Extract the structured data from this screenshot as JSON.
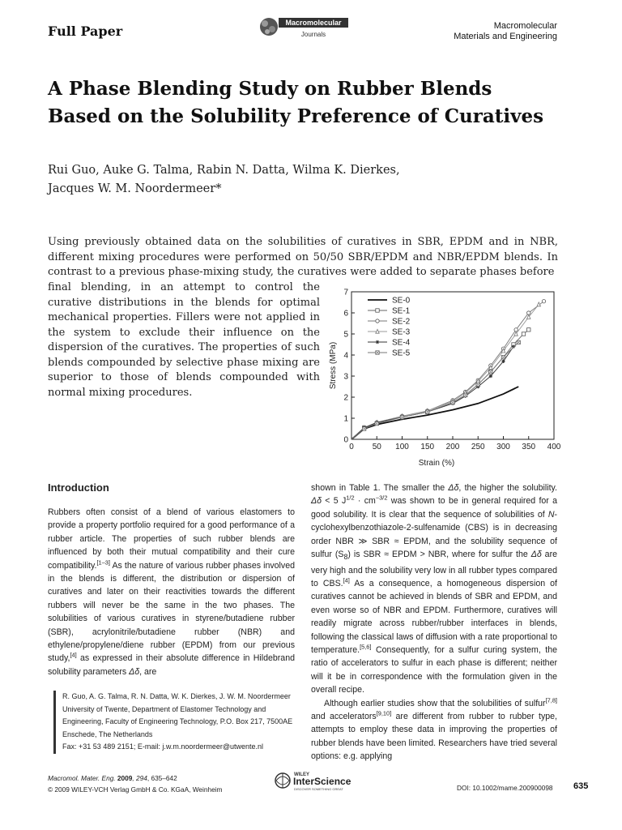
{
  "header": {
    "section_label": "Full Paper",
    "journal_logo_line1": "Macromolecular",
    "journal_logo_line2": "Journals",
    "journal_name_line1": "Macromolecular",
    "journal_name_line2": "Materials and Engineering"
  },
  "title_line1": "A Phase Blending Study on Rubber Blends",
  "title_line2": "Based on the Solubility Preference of Curatives",
  "authors_line1": "Rui Guo, Auke G. Talma, Rabin N. Datta, Wilma K. Dierkes,",
  "authors_line2": "Jacques W. M. Noordermeer*",
  "abstract_part1": "Using previously obtained data on the solubilities of curatives in SBR, EPDM and in NBR, different mixing procedures were performed on 50/50 SBR/EPDM and NBR/EPDM blends. In contrast to a previous phase-mixing study, the curatives were added to separate phases before",
  "abstract_part2": "final blending, in an attempt to control the curative distributions in the blends for optimal mechanical properties. Fillers were not applied in the system to exclude their influence on the dispersion of the curatives. The properties of such blends compounded by selective phase mixing are superior to those of blends compounded with normal mixing procedures.",
  "introduction": {
    "heading": "Introduction",
    "col1_text": "Rubbers often consist of a blend of various elastomers to provide a property portfolio required for a good performance of a rubber article. The properties of such rubber blends are influenced by both their mutual compatibility and their cure compatibility.",
    "col1_ref1": "[1–3]",
    "col1_text2": " As the nature of various rubber phases involved in the blends is different, the distribution or dispersion of curatives and later on their reactivities towards the different rubbers will never be the same in the two phases. The solubilities of various curatives in styrene/butadiene rubber (SBR), acrylonitrile/butadiene rubber (NBR) and ethylene/propylene/diene rubber (EPDM) from our previous study,",
    "col1_ref2": "[4]",
    "col1_text3": " as expressed in their absolute difference in Hildebrand solubility parameters ",
    "col1_delta": "Δδ",
    "col1_text4": ", are",
    "col2_p1a": "shown in Table 1. The smaller the ",
    "col2_p1b": "Δδ",
    "col2_p1c": ", the higher the solubility. ",
    "col2_p1d": "Δδ",
    "col2_p1e": " < 5 J",
    "col2_p1e_sup": "1/2",
    "col2_p1f": " · cm",
    "col2_p1f_sup": "−3/2",
    "col2_p1g": " was shown to be in general required for a good solubility. It is clear that the sequence of solubilities of ",
    "col2_p1h": "N",
    "col2_p1i": "-cyclohexylbenzothiazole-2-sulfenamide (CBS) is in decreasing order NBR ≫ SBR ≈ EPDM, and the solubility sequence of sulfur (S",
    "col2_p1i_sub": "8",
    "col2_p1j": ") is SBR ≈ EPDM > NBR, where for sulfur the ",
    "col2_p1k": "Δδ",
    "col2_p1l": " are very high and the solubility very low in all rubber types compared to CBS.",
    "col2_ref1": "[4]",
    "col2_p1m": " As a consequence, a homogeneous dispersion of curatives cannot be achieved in blends of SBR and EPDM, and even worse so of NBR and EPDM. Furthermore, curatives will readily migrate across rubber/rubber interfaces in blends, following the classical laws of diffusion with a rate proportional to temperature.",
    "col2_ref2": "[5,6]",
    "col2_p1n": " Consequently, for a sulfur curing system, the ratio of accelerators to sulfur in each phase is different; neither will it be in correspondence with the formulation given in the overall recipe.",
    "col2_p2a": "Although earlier studies show that the solubilities of sulfur",
    "col2_ref3": "[7,8]",
    "col2_p2b": " and accelerators",
    "col2_ref4": "[9,10]",
    "col2_p2c": " are different from rubber to rubber type, attempts to employ these data in improving the properties of rubber blends have been limited. Researchers have tried several options: e.g. applying"
  },
  "affiliation": {
    "line1": "R. Guo, A. G. Talma, R. N. Datta, W. K. Dierkes, J. W. M. Noordermeer",
    "line2": "University of Twente, Department of Elastomer Technology and Engineering, Faculty of Engineering Technology, P.O. Box 217, 7500AE Enschede, The Netherlands",
    "line3": "Fax: +31 53 489 2151; E-mail: j.w.m.noordermeer@utwente.nl"
  },
  "footer": {
    "cite_a": "Macromol. Mater. Eng.",
    "cite_b": " 2009",
    "cite_c": ", 294",
    "cite_d": ", 635–642",
    "copyright": "© 2009 WILEY-VCH Verlag GmbH & Co. KGaA, Weinheim",
    "logo_small": "WILEY",
    "logo_main": "InterScience",
    "logo_tag": "DISCOVER SOMETHING GREAT",
    "doi": "DOI: 10.1002/mame.200900098",
    "page": "635"
  },
  "chart_data": {
    "type": "line",
    "xlabel": "Strain (%)",
    "ylabel": "Stress (MPa)",
    "xlim": [
      0,
      400
    ],
    "ylim": [
      0,
      7
    ],
    "xticks": [
      0,
      50,
      100,
      150,
      200,
      250,
      300,
      350,
      400
    ],
    "yticks": [
      0,
      1,
      2,
      3,
      4,
      5,
      6,
      7
    ],
    "legend_position": "top-left",
    "grid": false,
    "series": [
      {
        "name": "SE-0",
        "marker": "none",
        "x": [
          0,
          25,
          50,
          100,
          150,
          200,
          250,
          300,
          330
        ],
        "y": [
          0,
          0.5,
          0.7,
          0.95,
          1.15,
          1.4,
          1.7,
          2.15,
          2.5
        ]
      },
      {
        "name": "SE-1",
        "marker": "square",
        "x": [
          0,
          25,
          50,
          100,
          150,
          200,
          225,
          250,
          275,
          300,
          320,
          340,
          350
        ],
        "y": [
          0,
          0.55,
          0.75,
          1.05,
          1.3,
          1.75,
          2.1,
          2.6,
          3.2,
          3.9,
          4.5,
          5.0,
          5.2
        ]
      },
      {
        "name": "SE-2",
        "marker": "circle",
        "x": [
          0,
          25,
          50,
          100,
          150,
          200,
          225,
          250,
          275,
          300,
          325,
          350,
          380
        ],
        "y": [
          0,
          0.55,
          0.8,
          1.1,
          1.35,
          1.85,
          2.25,
          2.8,
          3.5,
          4.3,
          5.2,
          6.0,
          6.55
        ]
      },
      {
        "name": "SE-3",
        "marker": "triangle",
        "x": [
          0,
          25,
          50,
          100,
          150,
          200,
          225,
          250,
          275,
          300,
          325,
          350,
          370
        ],
        "y": [
          0,
          0.55,
          0.8,
          1.1,
          1.35,
          1.8,
          2.2,
          2.75,
          3.4,
          4.2,
          5.0,
          5.8,
          6.4
        ]
      },
      {
        "name": "SE-4",
        "marker": "star",
        "x": [
          0,
          25,
          50,
          100,
          150,
          200,
          225,
          250,
          275,
          300,
          320
        ],
        "y": [
          0,
          0.55,
          0.8,
          1.05,
          1.3,
          1.7,
          2.05,
          2.5,
          3.0,
          3.7,
          4.4
        ]
      },
      {
        "name": "SE-5",
        "marker": "x-square",
        "x": [
          0,
          25,
          50,
          100,
          150,
          200,
          225,
          250,
          275,
          300,
          330
        ],
        "y": [
          0,
          0.5,
          0.75,
          1.05,
          1.3,
          1.75,
          2.1,
          2.6,
          3.2,
          3.9,
          4.6
        ]
      }
    ]
  }
}
